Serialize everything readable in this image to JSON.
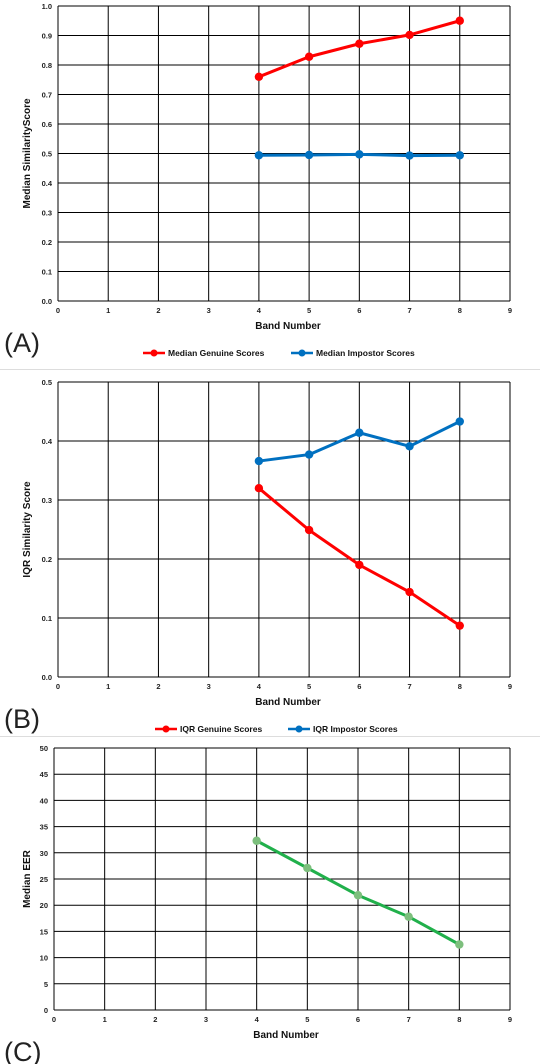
{
  "chart_data": [
    {
      "panel_label": "(A)",
      "type": "line",
      "xlabel": "Band Number",
      "ylabel": "Median SimilarityScore",
      "xlim": [
        0,
        9
      ],
      "ylim": [
        0,
        1.0
      ],
      "x_ticks": [
        "0",
        "1",
        "2",
        "3",
        "4",
        "5",
        "6",
        "7",
        "8",
        "9"
      ],
      "y_ticks": [
        "0.0",
        "0.1",
        "0.2",
        "0.3",
        "0.4",
        "0.5",
        "0.6",
        "0.7",
        "0.8",
        "0.9",
        "1.0"
      ],
      "grid": true,
      "legend_position": "bottom",
      "series": [
        {
          "name": "Median Genuine Scores",
          "color": "#ff0000",
          "x": [
            4,
            5,
            6,
            7,
            8
          ],
          "y": [
            0.76,
            0.828,
            0.872,
            0.902,
            0.95
          ]
        },
        {
          "name": "Median Impostor Scores",
          "color": "#0070c0",
          "x": [
            4,
            5,
            6,
            7,
            8
          ],
          "y": [
            0.494,
            0.495,
            0.497,
            0.493,
            0.494
          ]
        }
      ]
    },
    {
      "panel_label": "(B)",
      "type": "line",
      "xlabel": "Band Number",
      "ylabel": "IQR Similarity Score",
      "xlim": [
        0,
        9
      ],
      "ylim": [
        0,
        0.5
      ],
      "x_ticks": [
        "0",
        "1",
        "2",
        "3",
        "4",
        "5",
        "6",
        "7",
        "8",
        "9"
      ],
      "y_ticks": [
        "0.0",
        "0.1",
        "0.2",
        "0.3",
        "0.4",
        "0.5"
      ],
      "grid": true,
      "legend_position": "bottom",
      "series": [
        {
          "name": "IQR Genuine Scores",
          "color": "#ff0000",
          "x": [
            4,
            5,
            6,
            7,
            8
          ],
          "y": [
            0.32,
            0.249,
            0.19,
            0.144,
            0.087
          ]
        },
        {
          "name": "IQR Impostor Scores",
          "color": "#0070c0",
          "x": [
            4,
            5,
            6,
            7,
            8
          ],
          "y": [
            0.366,
            0.377,
            0.414,
            0.391,
            0.433
          ]
        }
      ]
    },
    {
      "panel_label": "(C)",
      "type": "line",
      "xlabel": "Band Number",
      "ylabel": "Median EER",
      "xlim": [
        0,
        9
      ],
      "ylim": [
        0,
        50
      ],
      "x_ticks": [
        "0",
        "1",
        "2",
        "3",
        "4",
        "5",
        "6",
        "7",
        "8",
        "9"
      ],
      "y_ticks": [
        "0",
        "5",
        "10",
        "15",
        "20",
        "25",
        "30",
        "35",
        "40",
        "45",
        "50"
      ],
      "grid": true,
      "series": [
        {
          "color": "#21b04b",
          "marker_color": "#7dbf7d",
          "x": [
            4,
            5,
            6,
            7,
            8
          ],
          "y": [
            32.3,
            27.1,
            21.9,
            17.8,
            12.5
          ]
        }
      ]
    }
  ]
}
